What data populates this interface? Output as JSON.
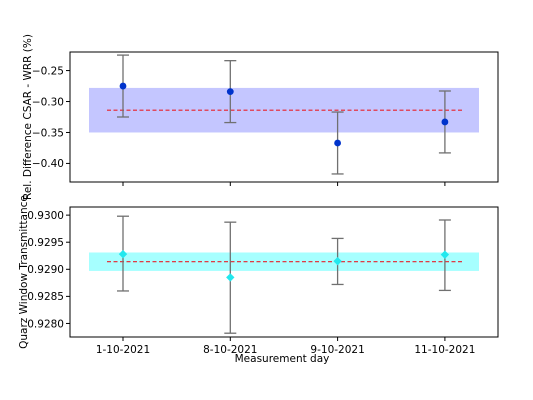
{
  "chart_data": [
    {
      "type": "scatter",
      "ylabel": "Rel. Difference CSAR - WRR (%)",
      "ylim": [
        -0.43,
        -0.22
      ],
      "yticks": [
        -0.4,
        -0.35,
        -0.3,
        -0.25
      ],
      "ytick_labels": [
        "−0.40",
        "−0.35",
        "−0.30",
        "−0.25"
      ],
      "categories": [
        "1-10-2021",
        "8-10-2021",
        "9-10-2021",
        "11-10-2021"
      ],
      "x_positions": [
        0,
        1,
        2,
        3
      ],
      "values": [
        -0.275,
        -0.284,
        -0.367,
        -0.333
      ],
      "errors": [
        0.05,
        0.05,
        0.05,
        0.05
      ],
      "mean": -0.314,
      "band": [
        -0.35,
        -0.278
      ],
      "marker": "circle",
      "marker_color": "#0033cc",
      "band_color": "#c4c6ff",
      "mean_color": "#e8202a",
      "error_color": "#707070"
    },
    {
      "type": "scatter",
      "xlabel": "Measurement day",
      "ylabel": "Quarz Window Transmittance",
      "ylim": [
        0.92775,
        0.93015
      ],
      "yticks": [
        0.928,
        0.9285,
        0.929,
        0.9295,
        0.93
      ],
      "ytick_labels": [
        "0.9280",
        "0.9285",
        "0.9290",
        "0.9295",
        "0.9300"
      ],
      "categories": [
        "1-10-2021",
        "8-10-2021",
        "9-10-2021",
        "11-10-2021"
      ],
      "x_positions": [
        0,
        1,
        2,
        3
      ],
      "values": [
        0.92928,
        0.92885,
        0.92915,
        0.92927
      ],
      "error_low": [
        0.9286,
        0.92782,
        0.92872,
        0.92861
      ],
      "error_high": [
        0.92998,
        0.92987,
        0.92957,
        0.92991
      ],
      "mean": 0.92914,
      "band": [
        0.92897,
        0.92931
      ],
      "marker": "diamond",
      "marker_color": "#22e8ee",
      "band_color": "#a6ffff",
      "mean_color": "#e8202a",
      "error_color": "#707070"
    }
  ]
}
